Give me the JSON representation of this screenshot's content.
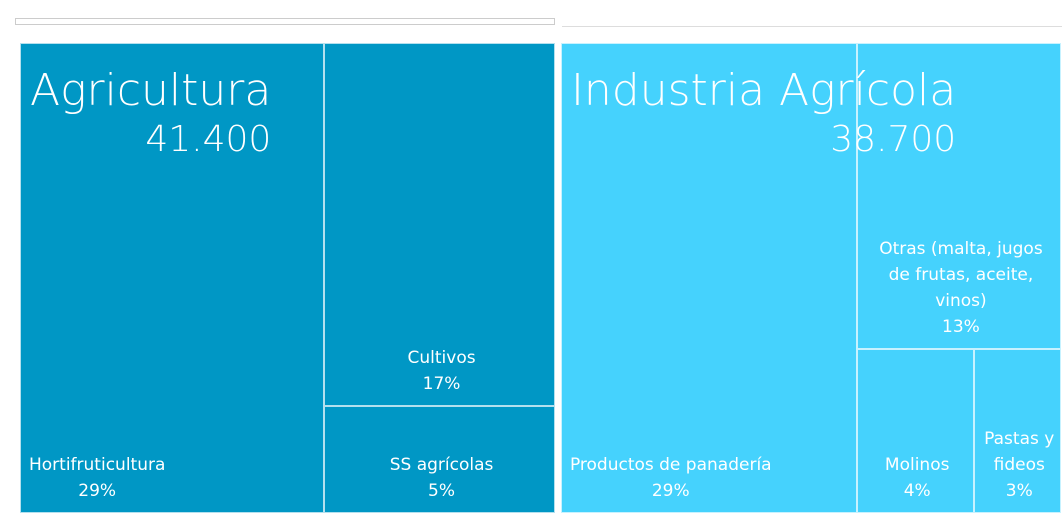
{
  "chart_data": {
    "type": "treemap",
    "groups": [
      {
        "name": "Agricultura",
        "value": 41400,
        "value_label": "41.400",
        "color": "#0097c5",
        "children": [
          {
            "name": "Hortifruticultura",
            "value": 29,
            "value_label": "29%"
          },
          {
            "name": "Cultivos",
            "value": 17,
            "value_label": "17%"
          },
          {
            "name": "SS agrícolas",
            "value": 5,
            "value_label": "5%"
          }
        ]
      },
      {
        "name": "Industria Agrícola",
        "value": 38700,
        "value_label": "38.700",
        "color": "#45d2fd",
        "children": [
          {
            "name": "Productos de panadería",
            "value": 29,
            "value_label": "29%"
          },
          {
            "name": "Otras (malta, jugos de frutas, aceite, vinos)",
            "value": 13,
            "value_label": "13%"
          },
          {
            "name": "Molinos",
            "value": 4,
            "value_label": "4%"
          },
          {
            "name": "Pastas y fideos",
            "value": 3,
            "value_label": "3%"
          }
        ]
      }
    ]
  }
}
